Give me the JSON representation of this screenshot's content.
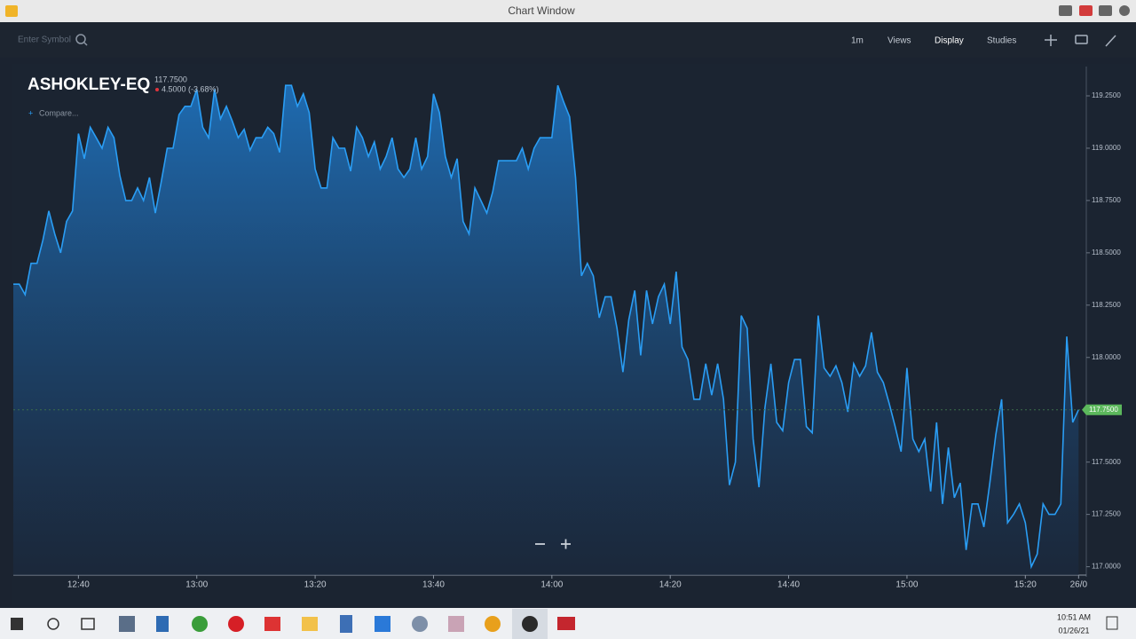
{
  "window": {
    "title": "Chart Window",
    "search_placeholder": "Enter Symbol",
    "menu": [
      "1m",
      "Views",
      "Display",
      "Studies"
    ]
  },
  "chart_data": {
    "type": "area",
    "title": "ASHOKLEY-EQ",
    "price_label": "117.7500",
    "change_label": "4.5000 (-3.68%)",
    "compare_label": "Compare...",
    "color": "#2a9df4",
    "x": [
      "12:29",
      "12:30",
      "12:31",
      "12:32",
      "12:33",
      "12:34",
      "12:35",
      "12:36",
      "12:37",
      "12:38",
      "12:39",
      "12:40",
      "12:41",
      "12:42",
      "12:43",
      "12:44",
      "12:45",
      "12:46",
      "12:47",
      "12:48",
      "12:49",
      "12:50",
      "12:51",
      "12:52",
      "12:53",
      "12:54",
      "12:55",
      "12:56",
      "12:57",
      "12:58",
      "12:59",
      "13:00",
      "13:01",
      "13:02",
      "13:03",
      "13:04",
      "13:05",
      "13:06",
      "13:07",
      "13:08",
      "13:09",
      "13:10",
      "13:11",
      "13:12",
      "13:13",
      "13:14",
      "13:15",
      "13:16",
      "13:17",
      "13:18",
      "13:19",
      "13:20",
      "13:21",
      "13:22",
      "13:23",
      "13:24",
      "13:25",
      "13:26",
      "13:27",
      "13:28",
      "13:29",
      "13:30",
      "13:31",
      "13:32",
      "13:33",
      "13:34",
      "13:35",
      "13:36",
      "13:37",
      "13:38",
      "13:39",
      "13:40",
      "13:41",
      "13:42",
      "13:43",
      "13:44",
      "13:45",
      "13:46",
      "13:47",
      "13:48",
      "13:49",
      "13:50",
      "13:51",
      "13:52",
      "13:53",
      "13:54",
      "13:55",
      "13:56",
      "13:57",
      "13:58",
      "13:59",
      "14:00",
      "14:01",
      "14:02",
      "14:03",
      "14:04",
      "14:05",
      "14:06",
      "14:07",
      "14:08",
      "14:09",
      "14:10",
      "14:11",
      "14:12",
      "14:13",
      "14:14",
      "14:15",
      "14:16",
      "14:17",
      "14:18",
      "14:19",
      "14:20",
      "14:21",
      "14:22",
      "14:23",
      "14:24",
      "14:25",
      "14:26",
      "14:27",
      "14:28",
      "14:29",
      "14:30",
      "14:31",
      "14:32",
      "14:33",
      "14:34",
      "14:35",
      "14:36",
      "14:37",
      "14:38",
      "14:39",
      "14:40",
      "14:41",
      "14:42",
      "14:43",
      "14:44",
      "14:45",
      "14:46",
      "14:47",
      "14:48",
      "14:49",
      "14:50",
      "14:51",
      "14:52",
      "14:53",
      "14:54",
      "14:55",
      "14:56",
      "14:57",
      "14:58",
      "14:59",
      "15:00",
      "15:01",
      "15:02",
      "15:03",
      "15:04",
      "15:05",
      "15:06",
      "15:07",
      "15:08",
      "15:09",
      "15:10",
      "15:11",
      "15:12",
      "15:13",
      "15:14",
      "15:15",
      "15:16",
      "15:17",
      "15:18",
      "15:19",
      "15:20",
      "15:21",
      "15:22",
      "15:23",
      "15:24",
      "15:25",
      "15:26",
      "15:27",
      "15:28",
      "15:29"
    ],
    "values": [
      118.35,
      118.35,
      118.3,
      118.45,
      118.45,
      118.56,
      118.7,
      118.59,
      118.5,
      118.65,
      118.7,
      119.07,
      118.95,
      119.1,
      119.05,
      119.0,
      119.1,
      119.05,
      118.87,
      118.75,
      118.75,
      118.81,
      118.75,
      118.86,
      118.69,
      118.84,
      119.0,
      119.0,
      119.16,
      119.2,
      119.2,
      119.28,
      119.1,
      119.05,
      119.28,
      119.14,
      119.2,
      119.13,
      119.05,
      119.09,
      118.99,
      119.05,
      119.05,
      119.1,
      119.07,
      118.98,
      119.3,
      119.3,
      119.2,
      119.26,
      119.17,
      118.9,
      118.81,
      118.81,
      119.05,
      119.0,
      119.0,
      118.89,
      119.1,
      119.05,
      118.96,
      119.03,
      118.9,
      118.96,
      119.05,
      118.9,
      118.86,
      118.9,
      119.05,
      118.9,
      118.96,
      119.26,
      119.17,
      118.96,
      118.86,
      118.95,
      118.65,
      118.59,
      118.81,
      118.75,
      118.69,
      118.79,
      118.94,
      118.94,
      118.94,
      118.94,
      119.0,
      118.9,
      119.0,
      119.05,
      119.05,
      119.05,
      119.3,
      119.22,
      119.15,
      118.86,
      118.39,
      118.45,
      118.39,
      118.19,
      118.29,
      118.29,
      118.14,
      117.93,
      118.18,
      118.32,
      118.01,
      118.32,
      118.16,
      118.29,
      118.35,
      118.16,
      118.41,
      118.05,
      117.99,
      117.8,
      117.8,
      117.97,
      117.82,
      117.97,
      117.8,
      117.39,
      117.5,
      118.2,
      118.14,
      117.61,
      117.38,
      117.76,
      117.97,
      117.69,
      117.65,
      117.88,
      117.99,
      117.99,
      117.67,
      117.64,
      118.2,
      117.95,
      117.91,
      117.96,
      117.88,
      117.74,
      117.97,
      117.91,
      117.96,
      118.12,
      117.93,
      117.88,
      117.78,
      117.67,
      117.55,
      117.95,
      117.61,
      117.55,
      117.61,
      117.36,
      117.69,
      117.3,
      117.57,
      117.33,
      117.4,
      117.08,
      117.3,
      117.3,
      117.19,
      117.4,
      117.63,
      117.8,
      117.21,
      117.25,
      117.3,
      117.21,
      117.0,
      117.06,
      117.3,
      117.25,
      117.25,
      117.3,
      118.1,
      117.69,
      117.75
    ],
    "xlim": [
      "12:29",
      "15:30"
    ],
    "xticks": [
      "12:40",
      "13:00",
      "13:20",
      "13:40",
      "14:00",
      "14:20",
      "14:40",
      "15:00",
      "15:20",
      {
        "value": "15:29",
        "label": "26/0"
      }
    ],
    "ylim": [
      116.96,
      119.39
    ],
    "yticks": [
      {
        "value": 117,
        "label": "117.0000"
      },
      {
        "value": 117.25,
        "label": "117.2500"
      },
      {
        "value": 117.5,
        "label": "117.5000"
      },
      {
        "value": 117.75,
        "label": "117.7500"
      },
      {
        "value": 118,
        "label": "118.0000"
      },
      {
        "value": 118.25,
        "label": "118.2500"
      },
      {
        "value": 118.5,
        "label": "118.5000"
      },
      {
        "value": 118.75,
        "label": "118.7500"
      },
      {
        "value": 119,
        "label": "119.0000"
      },
      {
        "value": 119.25,
        "label": "119.2500"
      }
    ]
  },
  "taskbar": {
    "time": "10:51 AM",
    "date": "01/26/21"
  }
}
